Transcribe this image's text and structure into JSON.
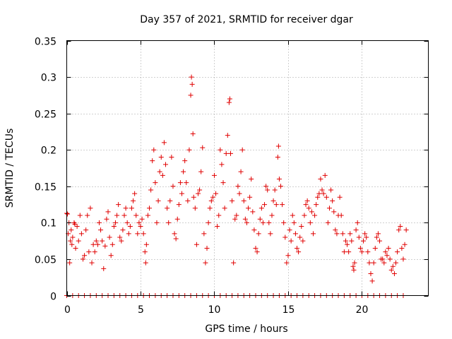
{
  "chart_data": {
    "type": "scatter",
    "title": "Day 357 of 2021, SRMTID for receiver dgar",
    "xlabel": "GPS time / hours",
    "ylabel": "SRMTID / TECUs",
    "xlim": [
      0,
      24.5
    ],
    "ylim": [
      0,
      0.35
    ],
    "xticks": [
      0,
      5,
      10,
      15,
      20
    ],
    "xtick_labels": [
      "0",
      "5",
      "10",
      "15",
      "20"
    ],
    "yticks": [
      0,
      0.05,
      0.1,
      0.15,
      0.2,
      0.25,
      0.3,
      0.35
    ],
    "ytick_labels": [
      "0",
      "0.05",
      "0.1",
      "0.15",
      "0.2",
      "0.25",
      "0.3",
      "0.35"
    ],
    "grid": true,
    "marker": "+",
    "color": "#e00000",
    "series": [
      {
        "name": "SRMTID",
        "points": [
          [
            0.0,
            0.113
          ],
          [
            0.05,
            0.112
          ],
          [
            0.1,
            0.085
          ],
          [
            0.15,
            0.1
          ],
          [
            0.2,
            0.045
          ],
          [
            0.25,
            0.075
          ],
          [
            0.3,
            0.09
          ],
          [
            0.35,
            0.07
          ],
          [
            0.4,
            0.08
          ],
          [
            0.5,
            0.1
          ],
          [
            0.55,
            0.098
          ],
          [
            0.6,
            0.065
          ],
          [
            0.7,
            0.095
          ],
          [
            0.8,
            0.075
          ],
          [
            0.9,
            0.11
          ],
          [
            1.0,
            0.085
          ],
          [
            1.1,
            0.05
          ],
          [
            1.2,
            0.055
          ],
          [
            1.3,
            0.09
          ],
          [
            1.4,
            0.11
          ],
          [
            1.5,
            0.06
          ],
          [
            1.6,
            0.12
          ],
          [
            1.7,
            0.045
          ],
          [
            1.8,
            0.07
          ],
          [
            1.9,
            0.06
          ],
          [
            2.0,
            0.075
          ],
          [
            2.1,
            0.07
          ],
          [
            2.2,
            0.1
          ],
          [
            2.3,
            0.09
          ],
          [
            2.4,
            0.075
          ],
          [
            2.5,
            0.037
          ],
          [
            2.6,
            0.068
          ],
          [
            2.7,
            0.105
          ],
          [
            2.8,
            0.115
          ],
          [
            2.9,
            0.08
          ],
          [
            3.0,
            0.055
          ],
          [
            3.1,
            0.07
          ],
          [
            3.2,
            0.095
          ],
          [
            3.3,
            0.1
          ],
          [
            3.4,
            0.11
          ],
          [
            3.5,
            0.125
          ],
          [
            3.6,
            0.08
          ],
          [
            3.7,
            0.075
          ],
          [
            3.8,
            0.09
          ],
          [
            3.9,
            0.11
          ],
          [
            4.0,
            0.12
          ],
          [
            4.1,
            0.1
          ],
          [
            4.2,
            0.085
          ],
          [
            4.3,
            0.095
          ],
          [
            4.4,
            0.12
          ],
          [
            4.5,
            0.13
          ],
          [
            4.6,
            0.14
          ],
          [
            4.7,
            0.11
          ],
          [
            4.8,
            0.085
          ],
          [
            4.9,
            0.1
          ],
          [
            5.0,
            0.095
          ],
          [
            5.1,
            0.105
          ],
          [
            5.2,
            0.085
          ],
          [
            5.3,
            0.06
          ],
          [
            5.35,
            0.045
          ],
          [
            5.4,
            0.07
          ],
          [
            5.5,
            0.11
          ],
          [
            5.6,
            0.12
          ],
          [
            5.7,
            0.145
          ],
          [
            5.8,
            0.185
          ],
          [
            5.9,
            0.2
          ],
          [
            6.0,
            0.155
          ],
          [
            6.1,
            0.1
          ],
          [
            6.2,
            0.13
          ],
          [
            6.3,
            0.17
          ],
          [
            6.4,
            0.19
          ],
          [
            6.5,
            0.165
          ],
          [
            6.6,
            0.21
          ],
          [
            6.7,
            0.18
          ],
          [
            6.8,
            0.12
          ],
          [
            6.9,
            0.1
          ],
          [
            7.0,
            0.13
          ],
          [
            7.1,
            0.19
          ],
          [
            7.2,
            0.15
          ],
          [
            7.3,
            0.085
          ],
          [
            7.4,
            0.078
          ],
          [
            7.5,
            0.105
          ],
          [
            7.6,
            0.125
          ],
          [
            7.7,
            0.155
          ],
          [
            7.8,
            0.14
          ],
          [
            7.9,
            0.17
          ],
          [
            8.0,
            0.185
          ],
          [
            8.1,
            0.155
          ],
          [
            8.2,
            0.13
          ],
          [
            8.3,
            0.2
          ],
          [
            8.4,
            0.275
          ],
          [
            8.45,
            0.3
          ],
          [
            8.5,
            0.29
          ],
          [
            8.55,
            0.222
          ],
          [
            8.6,
            0.135
          ],
          [
            8.7,
            0.12
          ],
          [
            8.8,
            0.07
          ],
          [
            8.9,
            0.14
          ],
          [
            9.0,
            0.145
          ],
          [
            9.1,
            0.17
          ],
          [
            9.2,
            0.203
          ],
          [
            9.3,
            0.085
          ],
          [
            9.4,
            0.045
          ],
          [
            9.5,
            0.065
          ],
          [
            9.6,
            0.1
          ],
          [
            9.7,
            0.12
          ],
          [
            9.8,
            0.13
          ],
          [
            9.9,
            0.135
          ],
          [
            10.0,
            0.165
          ],
          [
            10.1,
            0.14
          ],
          [
            10.2,
            0.095
          ],
          [
            10.3,
            0.11
          ],
          [
            10.4,
            0.2
          ],
          [
            10.5,
            0.18
          ],
          [
            10.6,
            0.155
          ],
          [
            10.7,
            0.12
          ],
          [
            10.8,
            0.195
          ],
          [
            10.9,
            0.22
          ],
          [
            11.0,
            0.265
          ],
          [
            11.05,
            0.27
          ],
          [
            11.1,
            0.195
          ],
          [
            11.2,
            0.13
          ],
          [
            11.3,
            0.045
          ],
          [
            11.4,
            0.105
          ],
          [
            11.5,
            0.11
          ],
          [
            11.6,
            0.15
          ],
          [
            11.7,
            0.14
          ],
          [
            11.8,
            0.17
          ],
          [
            11.9,
            0.2
          ],
          [
            12.0,
            0.13
          ],
          [
            12.1,
            0.105
          ],
          [
            12.2,
            0.1
          ],
          [
            12.3,
            0.12
          ],
          [
            12.4,
            0.135
          ],
          [
            12.5,
            0.16
          ],
          [
            12.6,
            0.115
          ],
          [
            12.7,
            0.09
          ],
          [
            12.8,
            0.065
          ],
          [
            12.9,
            0.06
          ],
          [
            13.0,
            0.085
          ],
          [
            13.1,
            0.105
          ],
          [
            13.2,
            0.12
          ],
          [
            13.3,
            0.1
          ],
          [
            13.4,
            0.125
          ],
          [
            13.5,
            0.15
          ],
          [
            13.6,
            0.145
          ],
          [
            13.7,
            0.1
          ],
          [
            13.8,
            0.085
          ],
          [
            13.9,
            0.11
          ],
          [
            14.0,
            0.13
          ],
          [
            14.1,
            0.145
          ],
          [
            14.2,
            0.125
          ],
          [
            14.3,
            0.19
          ],
          [
            14.35,
            0.205
          ],
          [
            14.4,
            0.16
          ],
          [
            14.5,
            0.15
          ],
          [
            14.6,
            0.125
          ],
          [
            14.7,
            0.1
          ],
          [
            14.8,
            0.08
          ],
          [
            14.9,
            0.045
          ],
          [
            15.0,
            0.055
          ],
          [
            15.1,
            0.09
          ],
          [
            15.2,
            0.075
          ],
          [
            15.3,
            0.11
          ],
          [
            15.4,
            0.1
          ],
          [
            15.5,
            0.085
          ],
          [
            15.6,
            0.065
          ],
          [
            15.7,
            0.06
          ],
          [
            15.8,
            0.08
          ],
          [
            15.9,
            0.095
          ],
          [
            16.0,
            0.075
          ],
          [
            16.1,
            0.11
          ],
          [
            16.2,
            0.125
          ],
          [
            16.3,
            0.13
          ],
          [
            16.4,
            0.12
          ],
          [
            16.5,
            0.1
          ],
          [
            16.6,
            0.115
          ],
          [
            16.7,
            0.085
          ],
          [
            16.8,
            0.11
          ],
          [
            16.9,
            0.125
          ],
          [
            17.0,
            0.135
          ],
          [
            17.1,
            0.14
          ],
          [
            17.2,
            0.16
          ],
          [
            17.3,
            0.145
          ],
          [
            17.4,
            0.14
          ],
          [
            17.5,
            0.165
          ],
          [
            17.6,
            0.135
          ],
          [
            17.7,
            0.1
          ],
          [
            17.8,
            0.12
          ],
          [
            17.9,
            0.145
          ],
          [
            18.0,
            0.13
          ],
          [
            18.1,
            0.115
          ],
          [
            18.2,
            0.09
          ],
          [
            18.3,
            0.085
          ],
          [
            18.4,
            0.11
          ],
          [
            18.5,
            0.135
          ],
          [
            18.6,
            0.11
          ],
          [
            18.7,
            0.085
          ],
          [
            18.8,
            0.06
          ],
          [
            18.9,
            0.075
          ],
          [
            19.0,
            0.07
          ],
          [
            19.1,
            0.06
          ],
          [
            19.2,
            0.085
          ],
          [
            19.3,
            0.075
          ],
          [
            19.4,
            0.04
          ],
          [
            19.45,
            0.035
          ],
          [
            19.5,
            0.045
          ],
          [
            19.6,
            0.09
          ],
          [
            19.7,
            0.1
          ],
          [
            19.8,
            0.08
          ],
          [
            19.9,
            0.065
          ],
          [
            20.0,
            0.06
          ],
          [
            20.1,
            0.075
          ],
          [
            20.2,
            0.085
          ],
          [
            20.3,
            0.08
          ],
          [
            20.4,
            0.06
          ],
          [
            20.5,
            0.045
          ],
          [
            20.6,
            0.03
          ],
          [
            20.7,
            0.02
          ],
          [
            20.8,
            0.045
          ],
          [
            20.9,
            0.065
          ],
          [
            21.0,
            0.08
          ],
          [
            21.1,
            0.085
          ],
          [
            21.2,
            0.075
          ],
          [
            21.3,
            0.05
          ],
          [
            21.4,
            0.05
          ],
          [
            21.5,
            0.045
          ],
          [
            21.6,
            0.06
          ],
          [
            21.7,
            0.055
          ],
          [
            21.8,
            0.065
          ],
          [
            21.9,
            0.05
          ],
          [
            22.0,
            0.035
          ],
          [
            22.1,
            0.04
          ],
          [
            22.2,
            0.03
          ],
          [
            22.3,
            0.045
          ],
          [
            22.4,
            0.06
          ],
          [
            22.5,
            0.09
          ],
          [
            22.6,
            0.095
          ],
          [
            22.7,
            0.065
          ],
          [
            22.8,
            0.05
          ],
          [
            22.9,
            0.07
          ],
          [
            23.0,
            0.09
          ]
        ]
      },
      {
        "name": "SRMTID zero",
        "points": [
          [
            0.0,
            0
          ],
          [
            0.4,
            0
          ],
          [
            0.8,
            0
          ],
          [
            1.2,
            0
          ],
          [
            1.6,
            0
          ],
          [
            2.0,
            0
          ],
          [
            2.4,
            0
          ],
          [
            2.8,
            0
          ],
          [
            3.2,
            0
          ],
          [
            3.6,
            0
          ],
          [
            4.0,
            0
          ],
          [
            4.4,
            0
          ],
          [
            4.8,
            0
          ],
          [
            5.2,
            0
          ],
          [
            5.6,
            0
          ],
          [
            6.0,
            0
          ],
          [
            6.4,
            0
          ],
          [
            6.8,
            0
          ],
          [
            7.2,
            0
          ],
          [
            7.6,
            0
          ],
          [
            8.0,
            0
          ],
          [
            8.4,
            0
          ],
          [
            8.8,
            0
          ],
          [
            9.2,
            0
          ],
          [
            9.6,
            0
          ],
          [
            10.0,
            0
          ],
          [
            10.4,
            0
          ],
          [
            10.8,
            0
          ],
          [
            11.2,
            0
          ],
          [
            11.6,
            0
          ],
          [
            12.0,
            0
          ],
          [
            12.4,
            0
          ],
          [
            12.8,
            0
          ],
          [
            13.2,
            0
          ],
          [
            13.6,
            0
          ],
          [
            14.0,
            0
          ],
          [
            14.4,
            0
          ],
          [
            14.8,
            0
          ],
          [
            15.2,
            0
          ],
          [
            15.6,
            0
          ],
          [
            16.0,
            0
          ],
          [
            16.4,
            0
          ],
          [
            16.8,
            0
          ],
          [
            17.2,
            0
          ],
          [
            17.6,
            0
          ],
          [
            18.0,
            0
          ],
          [
            18.4,
            0
          ],
          [
            18.8,
            0
          ],
          [
            19.2,
            0
          ],
          [
            19.6,
            0
          ],
          [
            20.0,
            0
          ],
          [
            20.4,
            0
          ],
          [
            20.8,
            0
          ],
          [
            21.2,
            0
          ],
          [
            21.6,
            0
          ],
          [
            22.0,
            0
          ],
          [
            22.4,
            0
          ],
          [
            22.8,
            0
          ]
        ]
      }
    ]
  }
}
